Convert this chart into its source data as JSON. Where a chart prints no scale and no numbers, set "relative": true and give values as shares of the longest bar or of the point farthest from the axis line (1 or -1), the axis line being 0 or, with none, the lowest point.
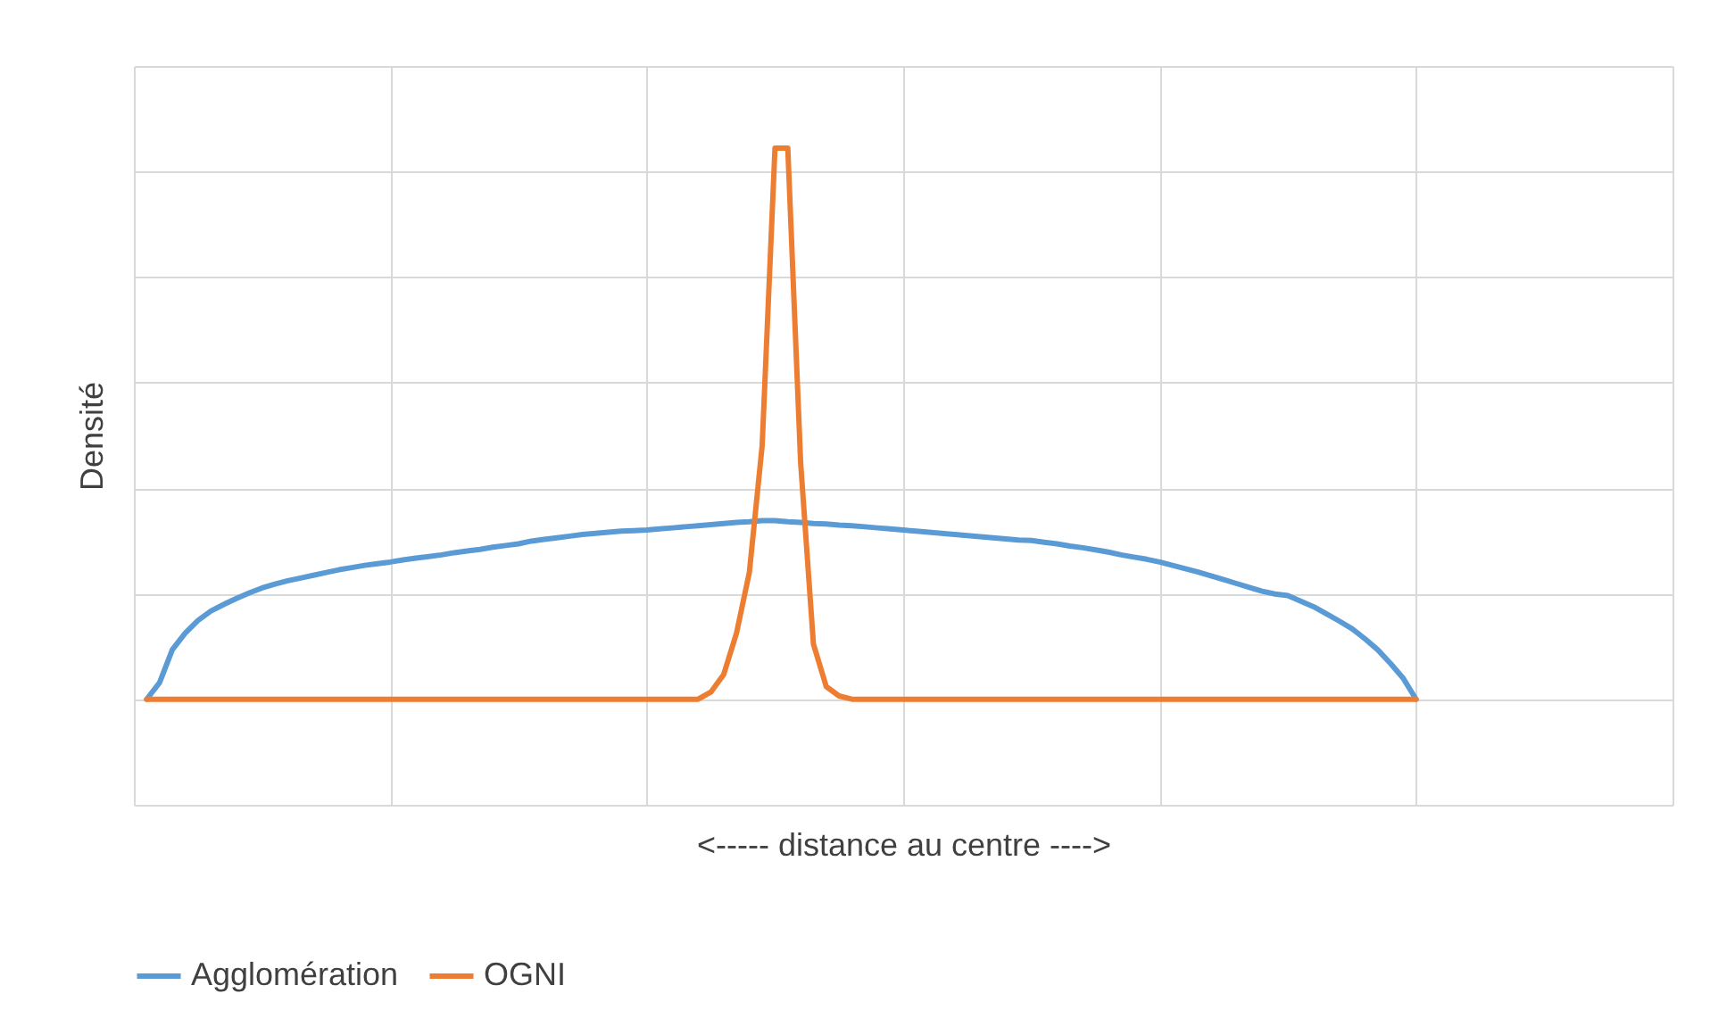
{
  "chart_data": {
    "type": "line",
    "xlabel": "<----- distance au centre ---->",
    "ylabel": "Densité",
    "relative": true,
    "grid": true,
    "legend": "bottom",
    "categories": [
      null,
      null,
      null,
      null,
      null,
      null,
      null,
      null,
      null,
      null,
      null,
      null,
      null,
      null,
      null,
      null,
      null,
      null,
      null,
      null,
      null,
      null,
      null,
      null,
      null,
      null,
      null,
      null,
      null,
      null,
      null,
      null,
      null,
      null,
      null,
      null,
      null,
      null,
      null,
      null,
      null,
      null,
      null,
      null,
      null,
      null,
      null,
      null,
      null,
      null,
      null,
      null,
      null,
      null,
      null,
      null,
      null,
      null,
      null,
      null,
      null,
      null,
      null,
      null,
      null,
      null,
      null,
      null,
      null,
      null,
      null,
      null,
      null,
      null,
      null,
      null,
      null,
      null,
      null,
      null,
      null,
      null,
      null,
      null,
      null,
      null,
      null,
      null,
      null,
      null,
      null,
      null,
      null,
      null,
      null,
      null,
      null,
      null,
      null,
      null,
      null,
      null,
      null,
      null,
      null,
      null,
      null,
      null,
      null,
      null,
      null,
      null,
      null,
      null,
      null,
      null,
      null,
      null,
      null,
      null,
      null
    ],
    "series": [
      {
        "name": "Agglomération",
        "color": "#5b9bd5",
        "values": [
          null,
          0,
          0.03,
          0.09,
          0.12,
          0.143,
          0.16,
          0.172,
          0.183,
          0.193,
          0.202,
          0.209,
          0.215,
          0.22,
          0.225,
          0.23,
          0.235,
          0.239,
          0.243,
          0.246,
          0.249,
          0.253,
          0.256,
          0.259,
          0.262,
          0.266,
          0.269,
          0.272,
          0.276,
          0.279,
          0.282,
          0.287,
          0.29,
          0.293,
          0.296,
          0.299,
          0.301,
          0.303,
          0.305,
          0.306,
          0.307,
          0.309,
          0.311,
          0.313,
          0.315,
          0.317,
          0.319,
          0.321,
          0.322,
          0.324,
          0.324,
          0.322,
          0.321,
          0.319,
          0.318,
          0.316,
          0.315,
          0.313,
          0.311,
          0.309,
          0.307,
          0.305,
          0.303,
          0.301,
          0.299,
          0.297,
          0.295,
          0.293,
          0.291,
          0.289,
          0.288,
          0.285,
          0.282,
          0.278,
          0.275,
          0.271,
          0.267,
          0.262,
          0.258,
          0.254,
          0.249,
          0.243,
          0.237,
          0.231,
          0.224,
          0.217,
          0.21,
          0.203,
          0.196,
          0.191,
          0.188,
          0.178,
          0.168,
          0.155,
          0.142,
          0.128,
          0.11,
          0.09,
          0.065,
          0.038,
          0,
          null,
          null,
          null,
          null,
          null,
          null,
          null,
          null,
          null,
          null,
          null,
          null,
          null,
          null,
          null,
          null,
          null,
          null,
          null,
          null
        ]
      },
      {
        "name": "OGNI",
        "color": "#ed7d31",
        "values": [
          null,
          0,
          0,
          0,
          0,
          0,
          0,
          0,
          0,
          0,
          0,
          0,
          0,
          0,
          0,
          0,
          0,
          0,
          0,
          0,
          0,
          0,
          0,
          0,
          0,
          0,
          0,
          0,
          0,
          0,
          0,
          0,
          0,
          0,
          0,
          0,
          0,
          0,
          0,
          0,
          0,
          0,
          0,
          0,
          0,
          0.013,
          0.045,
          0.12,
          0.23,
          0.46,
          1,
          1,
          0.43,
          0.1,
          0.023,
          0.006,
          0,
          0,
          0,
          0,
          0,
          0,
          0,
          0,
          0,
          0,
          0,
          0,
          0,
          0,
          0,
          0,
          0,
          0,
          0,
          0,
          0,
          0,
          0,
          0,
          0,
          0,
          0,
          0,
          0,
          0,
          0,
          0,
          0,
          0,
          0,
          0,
          0,
          0,
          0,
          0,
          0,
          0,
          0,
          0,
          0,
          null,
          null,
          null,
          null,
          null,
          null,
          null,
          null,
          null,
          null,
          null,
          null,
          null,
          null,
          null,
          null,
          null,
          null,
          null,
          null
        ]
      }
    ]
  }
}
